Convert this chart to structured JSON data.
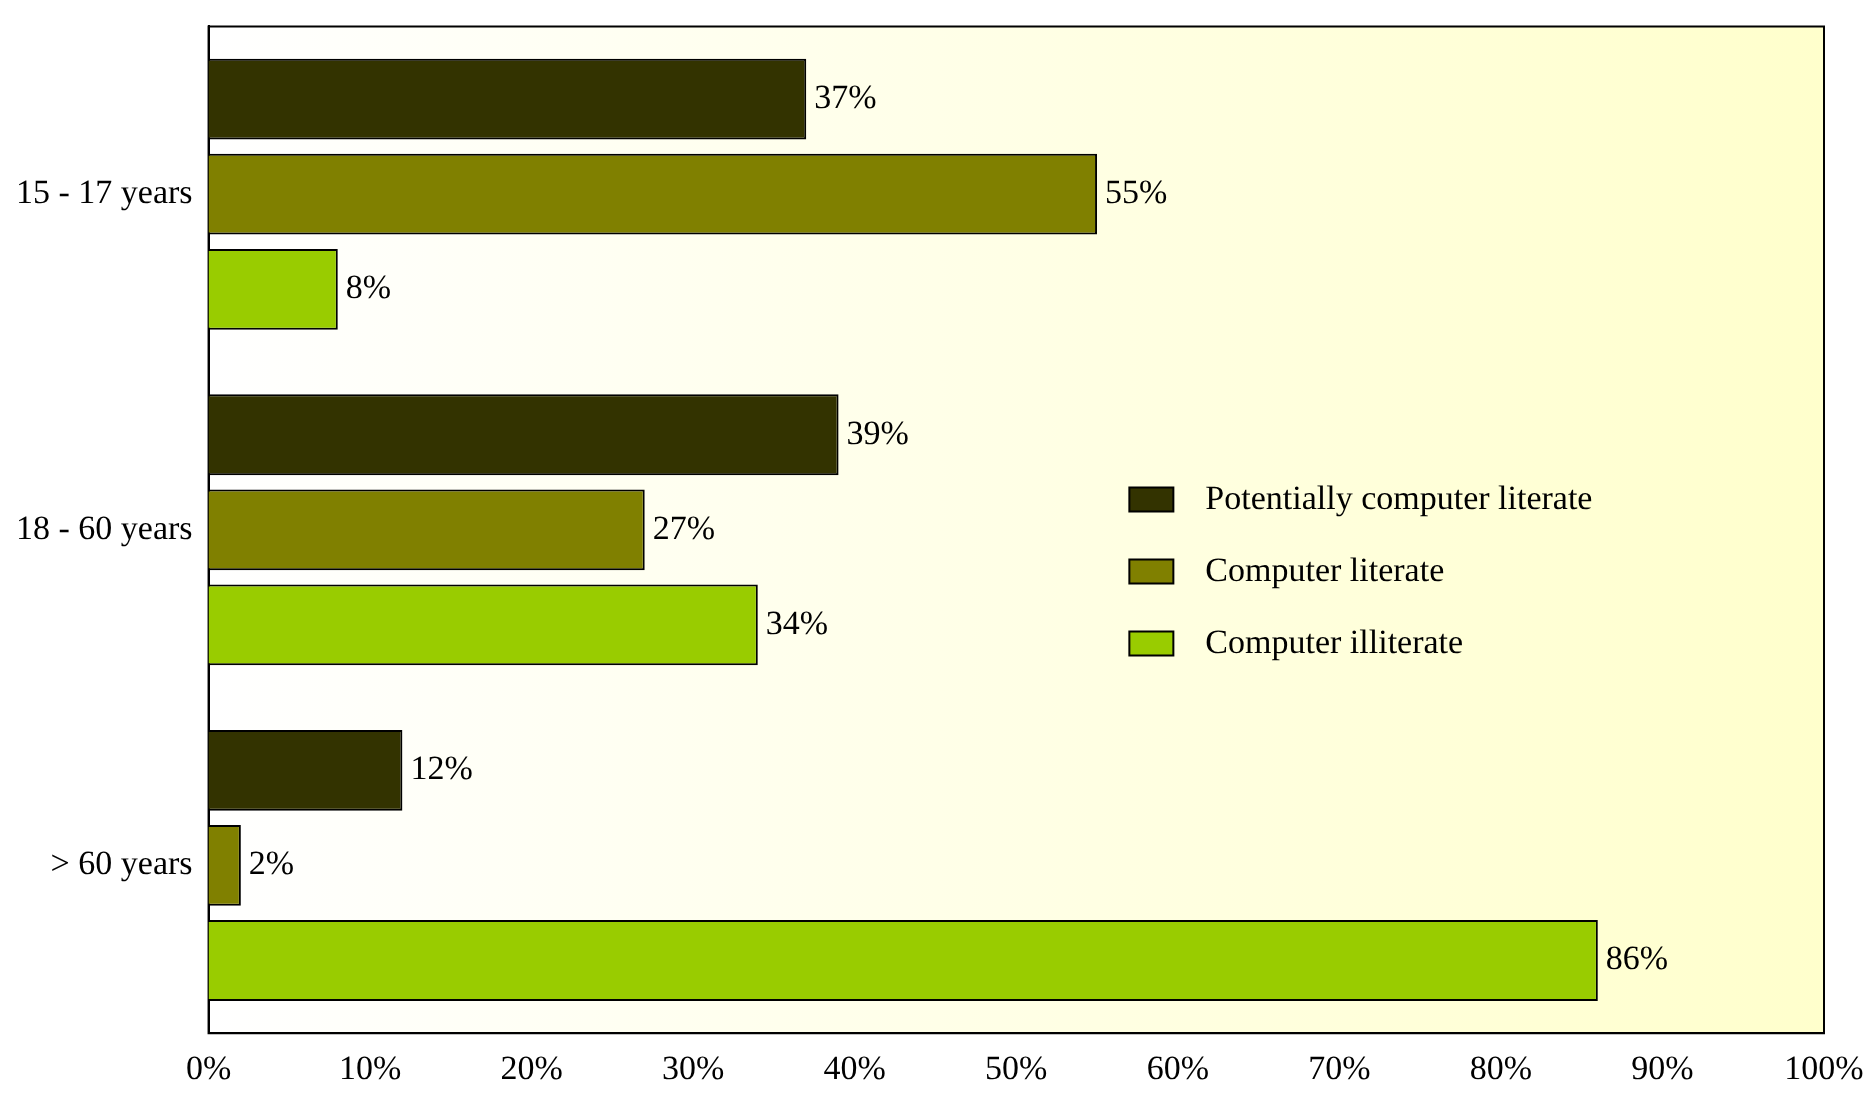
{
  "chart_data": {
    "type": "bar",
    "orientation": "horizontal",
    "categories": [
      "15 - 17 years",
      "18 - 60 years",
      "> 60 years"
    ],
    "series": [
      {
        "name": "Potentially computer literate",
        "color": "#333300",
        "values": [
          37,
          39,
          12
        ],
        "value_labels": [
          "37%",
          "39%",
          "12%"
        ]
      },
      {
        "name": "Computer literate",
        "color": "#808000",
        "values": [
          55,
          27,
          2
        ],
        "value_labels": [
          "55%",
          "27%",
          "2%"
        ]
      },
      {
        "name": "Computer illiterate",
        "color": "#99cc00",
        "values": [
          8,
          34,
          86
        ],
        "value_labels": [
          "8%",
          "34%",
          "86%"
        ]
      }
    ],
    "xlim": [
      0,
      100
    ],
    "xticks": [
      {
        "value": 0,
        "label": "0%"
      },
      {
        "value": 10,
        "label": "10%"
      },
      {
        "value": 20,
        "label": "20%"
      },
      {
        "value": 30,
        "label": "30%"
      },
      {
        "value": 40,
        "label": "40%"
      },
      {
        "value": 50,
        "label": "50%"
      },
      {
        "value": 60,
        "label": "60%"
      },
      {
        "value": 70,
        "label": "70%"
      },
      {
        "value": 80,
        "label": "80%"
      },
      {
        "value": 90,
        "label": "90%"
      },
      {
        "value": 100,
        "label": "100%"
      }
    ],
    "grid": false,
    "legend": "right"
  }
}
